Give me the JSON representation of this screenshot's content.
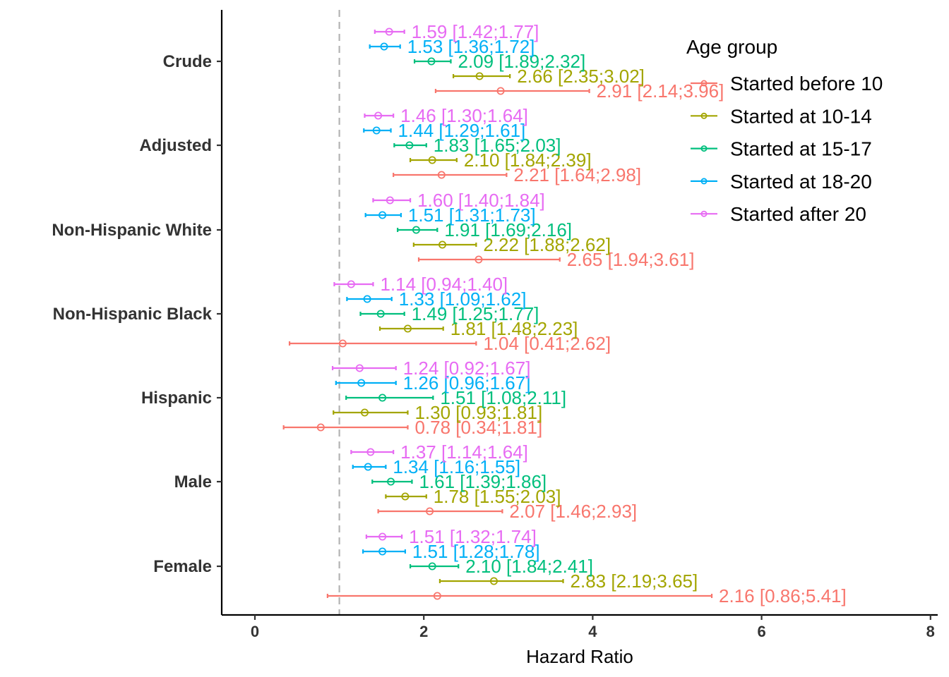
{
  "chart_data": {
    "type": "forest",
    "xlabel": "Hazard Ratio",
    "xlim": [
      -0.4,
      8.05
    ],
    "xticks": [
      0,
      2,
      4,
      6,
      8
    ],
    "reference_line": 1,
    "categories": [
      "Crude",
      "Adjusted",
      "Non-Hispanic White",
      "Non-Hispanic Black",
      "Hispanic",
      "Male",
      "Female"
    ],
    "legend": {
      "title": "Age group",
      "position": "top-right"
    },
    "series": [
      {
        "name": "Started before 10",
        "color": "#F8766D",
        "values": [
          {
            "est": 2.91,
            "lo": 2.14,
            "hi": 3.96,
            "label": "2.91 [2.14;3.96]"
          },
          {
            "est": 2.21,
            "lo": 1.64,
            "hi": 2.98,
            "label": "2.21 [1.64;2.98]"
          },
          {
            "est": 2.65,
            "lo": 1.94,
            "hi": 3.61,
            "label": "2.65 [1.94;3.61]"
          },
          {
            "est": 1.04,
            "lo": 0.41,
            "hi": 2.62,
            "label": "1.04 [0.41;2.62]"
          },
          {
            "est": 0.78,
            "lo": 0.34,
            "hi": 1.81,
            "label": "0.78 [0.34;1.81]"
          },
          {
            "est": 2.07,
            "lo": 1.46,
            "hi": 2.93,
            "label": "2.07 [1.46;2.93]"
          },
          {
            "est": 2.16,
            "lo": 0.86,
            "hi": 5.41,
            "label": "2.16 [0.86;5.41]"
          }
        ]
      },
      {
        "name": "Started at 10-14",
        "color": "#A3A500",
        "values": [
          {
            "est": 2.66,
            "lo": 2.35,
            "hi": 3.02,
            "label": "2.66 [2.35;3.02]"
          },
          {
            "est": 2.1,
            "lo": 1.84,
            "hi": 2.39,
            "label": "2.10 [1.84;2.39]"
          },
          {
            "est": 2.22,
            "lo": 1.88,
            "hi": 2.62,
            "label": "2.22 [1.88;2.62]"
          },
          {
            "est": 1.81,
            "lo": 1.48,
            "hi": 2.23,
            "label": "1.81 [1.48;2.23]"
          },
          {
            "est": 1.3,
            "lo": 0.93,
            "hi": 1.81,
            "label": "1.30 [0.93;1.81]"
          },
          {
            "est": 1.78,
            "lo": 1.55,
            "hi": 2.03,
            "label": "1.78 [1.55;2.03]"
          },
          {
            "est": 2.83,
            "lo": 2.19,
            "hi": 3.65,
            "label": "2.83 [2.19;3.65]"
          }
        ]
      },
      {
        "name": "Started at 15-17",
        "color": "#00BF7D",
        "values": [
          {
            "est": 2.09,
            "lo": 1.89,
            "hi": 2.32,
            "label": "2.09 [1.89;2.32]"
          },
          {
            "est": 1.83,
            "lo": 1.65,
            "hi": 2.03,
            "label": "1.83 [1.65;2.03]"
          },
          {
            "est": 1.91,
            "lo": 1.69,
            "hi": 2.16,
            "label": "1.91 [1.69;2.16]"
          },
          {
            "est": 1.49,
            "lo": 1.25,
            "hi": 1.77,
            "label": "1.49 [1.25;1.77]"
          },
          {
            "est": 1.51,
            "lo": 1.08,
            "hi": 2.11,
            "label": "1.51 [1.08;2.11]"
          },
          {
            "est": 1.61,
            "lo": 1.39,
            "hi": 1.86,
            "label": "1.61 [1.39;1.86]"
          },
          {
            "est": 2.1,
            "lo": 1.84,
            "hi": 2.41,
            "label": "2.10 [1.84;2.41]"
          }
        ]
      },
      {
        "name": "Started at 18-20",
        "color": "#00B0F6",
        "values": [
          {
            "est": 1.53,
            "lo": 1.36,
            "hi": 1.72,
            "label": "1.53 [1.36;1.72]"
          },
          {
            "est": 1.44,
            "lo": 1.29,
            "hi": 1.61,
            "label": "1.44 [1.29;1.61]"
          },
          {
            "est": 1.51,
            "lo": 1.31,
            "hi": 1.73,
            "label": "1.51 [1.31;1.73]"
          },
          {
            "est": 1.33,
            "lo": 1.09,
            "hi": 1.62,
            "label": "1.33 [1.09;1.62]"
          },
          {
            "est": 1.26,
            "lo": 0.96,
            "hi": 1.67,
            "label": "1.26 [0.96;1.67]"
          },
          {
            "est": 1.34,
            "lo": 1.16,
            "hi": 1.55,
            "label": "1.34 [1.16;1.55]"
          },
          {
            "est": 1.51,
            "lo": 1.28,
            "hi": 1.78,
            "label": "1.51 [1.28;1.78]"
          }
        ]
      },
      {
        "name": "Started after 20",
        "color": "#E76BF3",
        "values": [
          {
            "est": 1.59,
            "lo": 1.42,
            "hi": 1.77,
            "label": "1.59 [1.42;1.77]"
          },
          {
            "est": 1.46,
            "lo": 1.3,
            "hi": 1.64,
            "label": "1.46 [1.30;1.64]"
          },
          {
            "est": 1.6,
            "lo": 1.4,
            "hi": 1.84,
            "label": "1.60 [1.40;1.84]"
          },
          {
            "est": 1.14,
            "lo": 0.94,
            "hi": 1.4,
            "label": "1.14 [0.94;1.40]"
          },
          {
            "est": 1.24,
            "lo": 0.92,
            "hi": 1.67,
            "label": "1.24 [0.92;1.67]"
          },
          {
            "est": 1.37,
            "lo": 1.14,
            "hi": 1.64,
            "label": "1.37 [1.14;1.64]"
          },
          {
            "est": 1.51,
            "lo": 1.32,
            "hi": 1.74,
            "label": "1.51 [1.32;1.74]"
          }
        ]
      }
    ]
  }
}
